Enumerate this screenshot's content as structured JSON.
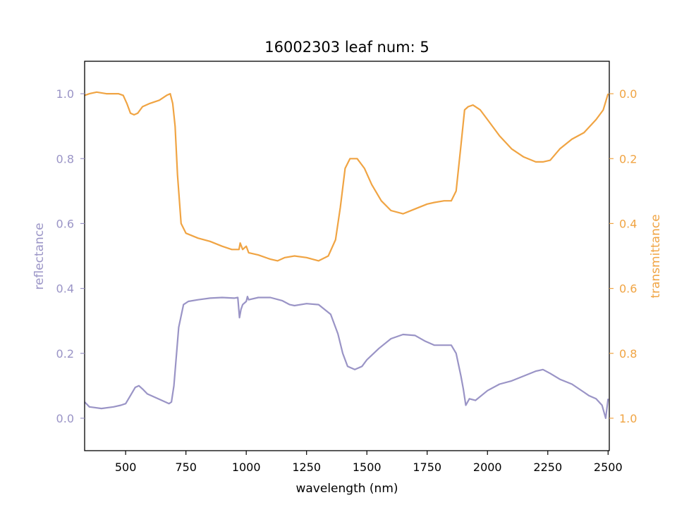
{
  "chart_data": {
    "type": "line",
    "title": "16002303 leaf num: 5",
    "xlabel": "wavelength (nm)",
    "ylabel_left": "reflectance",
    "ylabel_right": "transmittance",
    "xlim": [
      330,
      2505
    ],
    "ylim_left": [
      -0.1,
      1.1
    ],
    "ylim_right": [
      1.1,
      -0.1
    ],
    "right_axis_inverted": true,
    "x_ticks": [
      500,
      750,
      1000,
      1250,
      1500,
      1750,
      2000,
      2250,
      2500
    ],
    "y_ticks_left": [
      "0.0",
      "0.2",
      "0.4",
      "0.6",
      "0.8",
      "1.0"
    ],
    "y_ticks_right": [
      "0.0",
      "0.2",
      "0.4",
      "0.6",
      "0.8",
      "1.0"
    ],
    "grid": false,
    "colors": {
      "reflectance": "#9a94c6",
      "transmittance": "#f0a443"
    },
    "series": [
      {
        "axis": "left",
        "points": [
          [
            330,
            0.05
          ],
          [
            350,
            0.035
          ],
          [
            400,
            0.03
          ],
          [
            450,
            0.035
          ],
          [
            480,
            0.04
          ],
          [
            500,
            0.045
          ],
          [
            520,
            0.07
          ],
          [
            540,
            0.095
          ],
          [
            555,
            0.1
          ],
          [
            570,
            0.09
          ],
          [
            590,
            0.075
          ],
          [
            620,
            0.065
          ],
          [
            650,
            0.055
          ],
          [
            680,
            0.045
          ],
          [
            690,
            0.05
          ],
          [
            700,
            0.1
          ],
          [
            720,
            0.28
          ],
          [
            740,
            0.35
          ],
          [
            760,
            0.36
          ],
          [
            800,
            0.365
          ],
          [
            850,
            0.37
          ],
          [
            900,
            0.372
          ],
          [
            950,
            0.37
          ],
          [
            965,
            0.372
          ],
          [
            972,
            0.31
          ],
          [
            978,
            0.335
          ],
          [
            985,
            0.35
          ],
          [
            1000,
            0.36
          ],
          [
            1005,
            0.375
          ],
          [
            1010,
            0.365
          ],
          [
            1050,
            0.372
          ],
          [
            1100,
            0.372
          ],
          [
            1150,
            0.362
          ],
          [
            1180,
            0.35
          ],
          [
            1200,
            0.347
          ],
          [
            1250,
            0.353
          ],
          [
            1300,
            0.35
          ],
          [
            1350,
            0.32
          ],
          [
            1380,
            0.26
          ],
          [
            1400,
            0.2
          ],
          [
            1420,
            0.16
          ],
          [
            1450,
            0.15
          ],
          [
            1480,
            0.16
          ],
          [
            1500,
            0.18
          ],
          [
            1550,
            0.215
          ],
          [
            1600,
            0.245
          ],
          [
            1650,
            0.258
          ],
          [
            1700,
            0.255
          ],
          [
            1740,
            0.238
          ],
          [
            1780,
            0.225
          ],
          [
            1820,
            0.225
          ],
          [
            1850,
            0.225
          ],
          [
            1870,
            0.2
          ],
          [
            1890,
            0.13
          ],
          [
            1900,
            0.09
          ],
          [
            1910,
            0.04
          ],
          [
            1925,
            0.06
          ],
          [
            1950,
            0.055
          ],
          [
            2000,
            0.085
          ],
          [
            2050,
            0.105
          ],
          [
            2100,
            0.115
          ],
          [
            2150,
            0.13
          ],
          [
            2200,
            0.145
          ],
          [
            2230,
            0.15
          ],
          [
            2260,
            0.138
          ],
          [
            2300,
            0.12
          ],
          [
            2350,
            0.105
          ],
          [
            2400,
            0.08
          ],
          [
            2420,
            0.07
          ],
          [
            2450,
            0.06
          ],
          [
            2475,
            0.04
          ],
          [
            2490,
            0.0
          ],
          [
            2500,
            0.06
          ]
        ]
      },
      {
        "axis": "right",
        "points": [
          [
            330,
            0.005
          ],
          [
            350,
            0.0
          ],
          [
            380,
            -0.005
          ],
          [
            420,
            0.0
          ],
          [
            470,
            0.0
          ],
          [
            490,
            0.005
          ],
          [
            505,
            0.03
          ],
          [
            520,
            0.06
          ],
          [
            535,
            0.065
          ],
          [
            550,
            0.06
          ],
          [
            570,
            0.04
          ],
          [
            600,
            0.03
          ],
          [
            640,
            0.02
          ],
          [
            670,
            0.005
          ],
          [
            685,
            0.0
          ],
          [
            695,
            0.03
          ],
          [
            705,
            0.1
          ],
          [
            715,
            0.25
          ],
          [
            730,
            0.4
          ],
          [
            750,
            0.43
          ],
          [
            800,
            0.445
          ],
          [
            850,
            0.455
          ],
          [
            900,
            0.47
          ],
          [
            940,
            0.48
          ],
          [
            970,
            0.48
          ],
          [
            975,
            0.46
          ],
          [
            985,
            0.48
          ],
          [
            1000,
            0.47
          ],
          [
            1010,
            0.49
          ],
          [
            1050,
            0.497
          ],
          [
            1100,
            0.51
          ],
          [
            1130,
            0.515
          ],
          [
            1160,
            0.505
          ],
          [
            1200,
            0.5
          ],
          [
            1250,
            0.505
          ],
          [
            1300,
            0.515
          ],
          [
            1340,
            0.5
          ],
          [
            1370,
            0.45
          ],
          [
            1390,
            0.35
          ],
          [
            1410,
            0.23
          ],
          [
            1430,
            0.2
          ],
          [
            1460,
            0.2
          ],
          [
            1490,
            0.23
          ],
          [
            1520,
            0.28
          ],
          [
            1560,
            0.33
          ],
          [
            1600,
            0.36
          ],
          [
            1650,
            0.37
          ],
          [
            1700,
            0.355
          ],
          [
            1750,
            0.34
          ],
          [
            1780,
            0.335
          ],
          [
            1820,
            0.33
          ],
          [
            1850,
            0.33
          ],
          [
            1870,
            0.3
          ],
          [
            1890,
            0.16
          ],
          [
            1905,
            0.05
          ],
          [
            1920,
            0.04
          ],
          [
            1940,
            0.035
          ],
          [
            1970,
            0.05
          ],
          [
            2000,
            0.08
          ],
          [
            2050,
            0.13
          ],
          [
            2100,
            0.17
          ],
          [
            2150,
            0.195
          ],
          [
            2200,
            0.21
          ],
          [
            2230,
            0.21
          ],
          [
            2260,
            0.205
          ],
          [
            2300,
            0.17
          ],
          [
            2350,
            0.14
          ],
          [
            2400,
            0.12
          ],
          [
            2450,
            0.08
          ],
          [
            2480,
            0.05
          ],
          [
            2500,
            0.0
          ]
        ]
      }
    ]
  }
}
